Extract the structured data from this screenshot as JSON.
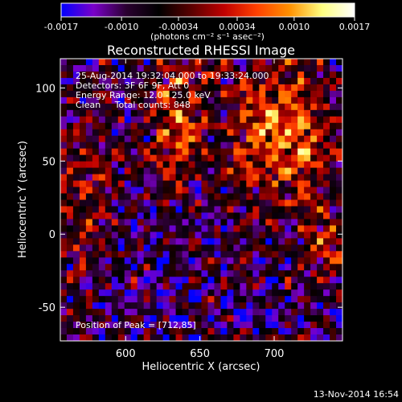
{
  "colors": {
    "background": "#000000",
    "axes": "#ffffff",
    "text": "#ffffff",
    "colormap": [
      "#0000ff",
      "#7a00c8",
      "#2a0030",
      "#000000",
      "#5a0000",
      "#c00000",
      "#ff4000",
      "#ff9000",
      "#ffff80",
      "#ffffff"
    ]
  },
  "colorbar": {
    "tick_labels": [
      "-0.0017",
      "-0.0010",
      "-0.00034",
      "0.00034",
      "0.0010",
      "0.0017"
    ],
    "tick_values": [
      -0.0017,
      -0.001,
      -0.00034,
      0.00034,
      0.001,
      0.0017
    ],
    "range": [
      -0.0017,
      0.0017
    ],
    "units_label": "(photons cm⁻² s⁻¹ asec⁻²)"
  },
  "chart_data": {
    "type": "heatmap",
    "title": "Reconstructed RHESSI Image",
    "xlabel": "Heliocentric X (arcsec)",
    "ylabel": "Heliocentric Y (arcsec)",
    "xlim": [
      556,
      746
    ],
    "ylim": [
      -73,
      120
    ],
    "x_ticks": [
      600,
      650,
      700
    ],
    "x_tick_labels": [
      "600",
      "650",
      "700"
    ],
    "y_ticks": [
      -50,
      0,
      50,
      100
    ],
    "y_tick_labels": [
      "-50",
      "0",
      "50",
      "100"
    ],
    "peak_position": [
      712,
      85
    ],
    "annotations": [
      "25-Aug-2014 19:32:04.000 to 19:33:24.000",
      "Detectors: 3F 6F 9F, Att 0",
      "Energy Range: 12.0 - 25.0 keV",
      "Clean     Total counts: 848",
      "Position of Peak = [712,85]"
    ]
  },
  "footer": {
    "timestamp": "13-Nov-2014 16:54"
  }
}
